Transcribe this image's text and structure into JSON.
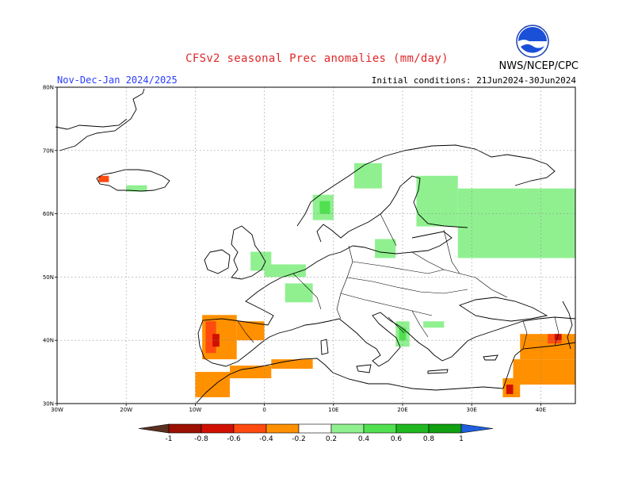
{
  "header": {
    "title": "CFSv2 seasonal Prec anomalies (mm/day)",
    "period": "Nov-Dec-Jan 2024/2025",
    "initial_conditions": "Initial conditions: 21Jun2024-30Jun2024",
    "agency": "NWS/NCEP/CPC",
    "logo_text": "NOAA"
  },
  "map": {
    "lon_range": [
      -30,
      45
    ],
    "lat_range": [
      30,
      80
    ],
    "lon_ticks": [
      {
        "value": -30,
        "label": "30W"
      },
      {
        "value": -20,
        "label": "20W"
      },
      {
        "value": -10,
        "label": "10W"
      },
      {
        "value": 0,
        "label": "0"
      },
      {
        "value": 10,
        "label": "10E"
      },
      {
        "value": 20,
        "label": "20E"
      },
      {
        "value": 30,
        "label": "30E"
      },
      {
        "value": 40,
        "label": "40E"
      }
    ],
    "lat_ticks": [
      {
        "value": 30,
        "label": "30N"
      },
      {
        "value": 40,
        "label": "40N"
      },
      {
        "value": 50,
        "label": "50N"
      },
      {
        "value": 60,
        "label": "60N"
      },
      {
        "value": 70,
        "label": "70N"
      },
      {
        "value": 80,
        "label": "80N"
      }
    ],
    "grid": true,
    "anomaly_cells": [
      {
        "lon": [
          28,
          45
        ],
        "lat": [
          53,
          64
        ],
        "value": 0.3
      },
      {
        "lon": [
          22,
          28
        ],
        "lat": [
          58,
          66
        ],
        "value": 0.3
      },
      {
        "lon": [
          13,
          17
        ],
        "lat": [
          64,
          68
        ],
        "value": 0.3
      },
      {
        "lon": [
          7,
          10
        ],
        "lat": [
          59,
          63
        ],
        "value": 0.3
      },
      {
        "lon": [
          8,
          9.5
        ],
        "lat": [
          60,
          62
        ],
        "value": 0.5
      },
      {
        "lon": [
          -2,
          1
        ],
        "lat": [
          51,
          54
        ],
        "value": 0.3
      },
      {
        "lon": [
          0,
          6
        ],
        "lat": [
          50,
          52
        ],
        "value": 0.3
      },
      {
        "lon": [
          3,
          7
        ],
        "lat": [
          46,
          49
        ],
        "value": 0.3
      },
      {
        "lon": [
          16,
          19
        ],
        "lat": [
          53,
          56
        ],
        "value": 0.3
      },
      {
        "lon": [
          -20,
          -17
        ],
        "lat": [
          63.5,
          64.5
        ],
        "value": 0.3
      },
      {
        "lon": [
          19,
          21
        ],
        "lat": [
          39,
          43
        ],
        "value": 0.3
      },
      {
        "lon": [
          19.5,
          20.5
        ],
        "lat": [
          40,
          42
        ],
        "value": 0.5
      },
      {
        "lon": [
          23,
          26
        ],
        "lat": [
          42,
          43
        ],
        "value": 0.3
      },
      {
        "lon": [
          -9,
          -4
        ],
        "lat": [
          37,
          44
        ],
        "value": -0.3
      },
      {
        "lon": [
          -8.5,
          -7
        ],
        "lat": [
          38,
          43
        ],
        "value": -0.5
      },
      {
        "lon": [
          -7.5,
          -6.5
        ],
        "lat": [
          39,
          41
        ],
        "value": -0.7
      },
      {
        "lon": [
          -4,
          0
        ],
        "lat": [
          40,
          43
        ],
        "value": -0.3
      },
      {
        "lon": [
          -10,
          -5
        ],
        "lat": [
          31,
          35
        ],
        "value": -0.3
      },
      {
        "lon": [
          -5,
          1
        ],
        "lat": [
          34,
          36
        ],
        "value": -0.3
      },
      {
        "lon": [
          1,
          7
        ],
        "lat": [
          35.5,
          37
        ],
        "value": -0.3
      },
      {
        "lon": [
          37,
          45
        ],
        "lat": [
          37,
          41
        ],
        "value": -0.3
      },
      {
        "lon": [
          41,
          43
        ],
        "lat": [
          39.5,
          41
        ],
        "value": -0.5
      },
      {
        "lon": [
          42,
          43
        ],
        "lat": [
          40,
          41
        ],
        "value": -0.7
      },
      {
        "lon": [
          36,
          45
        ],
        "lat": [
          33,
          37
        ],
        "value": -0.3
      },
      {
        "lon": [
          34.5,
          37
        ],
        "lat": [
          31,
          34
        ],
        "value": -0.3
      },
      {
        "lon": [
          35,
          36
        ],
        "lat": [
          31.5,
          33
        ],
        "value": -0.7
      },
      {
        "lon": [
          -24,
          -22.5
        ],
        "lat": [
          65,
          66
        ],
        "value": -0.5
      }
    ]
  },
  "colorbar": {
    "labels": [
      "-1",
      "-0.8",
      "-0.6",
      "-0.4",
      "-0.2",
      "0.2",
      "0.4",
      "0.6",
      "0.8",
      "1"
    ],
    "colors": [
      "#9b1000",
      "#d01000",
      "#ff4a10",
      "#ff9000",
      "#ffffff",
      "#90f090",
      "#50e050",
      "#20b820",
      "#10a010"
    ],
    "low_extreme_color": "#5a3020",
    "high_extreme_color": "#2060e0"
  }
}
